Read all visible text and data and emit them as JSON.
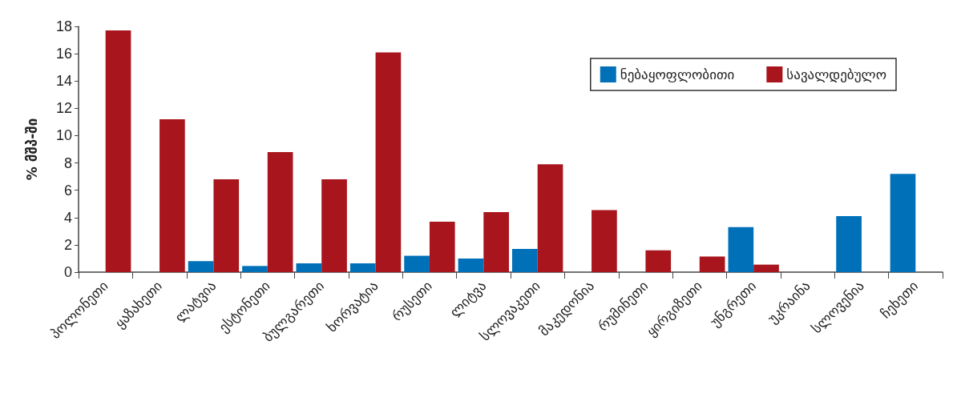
{
  "chart_data": {
    "type": "bar",
    "ylabel": "% მშპ-ში",
    "categories": [
      "პოლონეთი",
      "ყაზახეთი",
      "ლატვია",
      "ესტონეთი",
      "ბულგარეთი",
      "ხორვატია",
      "რუსეთი",
      "ლიტვა",
      "სლოვაკეთი",
      "მაკედონია",
      "რუმინეთი",
      "ყირგიზეთი",
      "უნგრეთი",
      "უკრაინა",
      "სლოვენია",
      "ჩეხეთი"
    ],
    "series": [
      {
        "name": "ნებაყოფლობითი",
        "color": "#0070b8",
        "values": [
          0,
          0,
          0.8,
          0.45,
          0.65,
          0.65,
          1.2,
          1.0,
          1.7,
          0,
          0,
          0,
          3.3,
          0,
          4.1,
          7.2
        ]
      },
      {
        "name": "სავალდებულო",
        "color": "#a8151c",
        "values": [
          17.7,
          11.2,
          6.8,
          8.8,
          6.8,
          16.1,
          3.7,
          4.4,
          7.9,
          4.55,
          1.6,
          1.15,
          0.55,
          0,
          0,
          0
        ]
      }
    ],
    "ylim": [
      0,
      18
    ],
    "yticks": [
      0,
      2,
      4,
      6,
      8,
      10,
      12,
      14,
      16,
      18
    ],
    "grid": false,
    "legend": "top right"
  }
}
